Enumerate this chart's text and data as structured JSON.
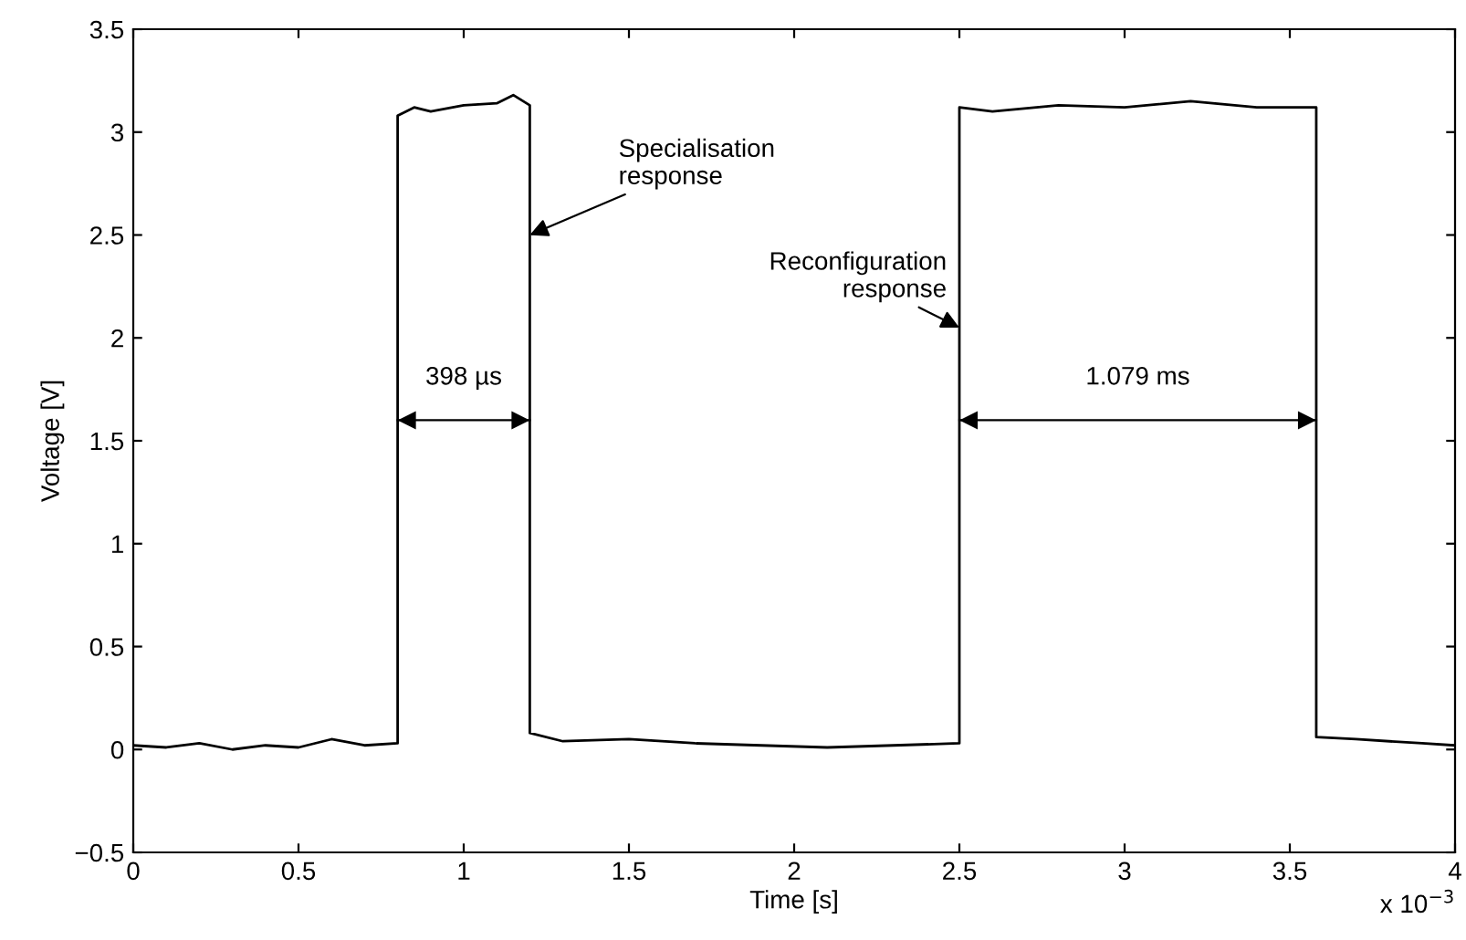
{
  "chart_data": {
    "type": "line",
    "xlabel": "Time [s]",
    "ylabel": "Voltage [V]",
    "xlim": [
      0,
      4
    ],
    "ylim": [
      -0.5,
      3.5
    ],
    "xticks": [
      0,
      0.5,
      1,
      1.5,
      2,
      2.5,
      3,
      3.5,
      4
    ],
    "yticks": [
      {
        "value": -0.5,
        "label": "−0.5"
      },
      0,
      0.5,
      1,
      1.5,
      2,
      2.5,
      3,
      3.5
    ],
    "grid": false,
    "marker": "none",
    "line_style": "solid",
    "series": [
      {
        "color": "#000000",
        "x": [
          0,
          0.1,
          0.2,
          0.3,
          0.4,
          0.5,
          0.6,
          0.7,
          0.8,
          0.8,
          0.85,
          0.9,
          1.0,
          1.1,
          1.15,
          1.2,
          1.2,
          1.3,
          1.5,
          1.7,
          1.9,
          2.1,
          2.3,
          2.5,
          2.5,
          2.6,
          2.8,
          3.0,
          3.2,
          3.4,
          3.58,
          3.58,
          3.7,
          3.9,
          4.0
        ],
        "values": [
          0.02,
          0.01,
          0.03,
          0.0,
          0.02,
          0.01,
          0.05,
          0.02,
          0.03,
          3.08,
          3.12,
          3.1,
          3.13,
          3.14,
          3.18,
          3.13,
          0.08,
          0.04,
          0.05,
          0.03,
          0.02,
          0.01,
          0.02,
          0.03,
          3.12,
          3.1,
          3.13,
          3.12,
          3.15,
          3.12,
          3.12,
          0.06,
          0.05,
          0.03,
          0.02
        ]
      },
      {
        "color": "#000000",
        "x": [
          0.8,
          1.2
        ],
        "values": [
          1.6,
          1.6
        ]
      },
      {
        "color": "#000000",
        "x": [
          2.5,
          3.58
        ],
        "values": [
          1.6,
          1.6
        ]
      }
    ],
    "annotations": [
      {
        "text": "Specialisation\nresponse",
        "x": 1.2,
        "y": 2.5
      },
      {
        "text": "Reconfiguration\nresponse",
        "x": 2.5,
        "y": 2.05
      },
      {
        "text": "398 µs",
        "x": 1.0,
        "y": 1.6
      },
      {
        "text": "1.079 ms",
        "x": 3.04,
        "y": 1.6
      },
      "x 10$^{−3}$"
    ]
  }
}
